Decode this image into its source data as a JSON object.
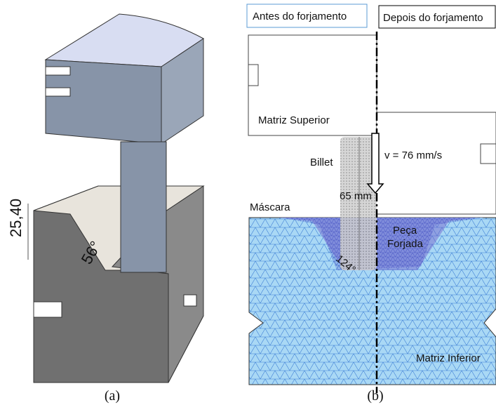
{
  "panel_a": {
    "dimension_height": "25,40",
    "angle": "56°",
    "caption": "(a)"
  },
  "panel_b": {
    "before_label": "Antes do forjamento",
    "after_label": "Depois do forjamento",
    "upper_die": "Matriz Superior",
    "billet": "Billet",
    "velocity": "v = 76 mm/s",
    "billet_height": "65 mm",
    "mask": "Máscara",
    "angle": "124°",
    "forged_part": [
      "Peça",
      "Forjada"
    ],
    "lower_die": "Matriz Inferior",
    "caption": "(b)"
  }
}
